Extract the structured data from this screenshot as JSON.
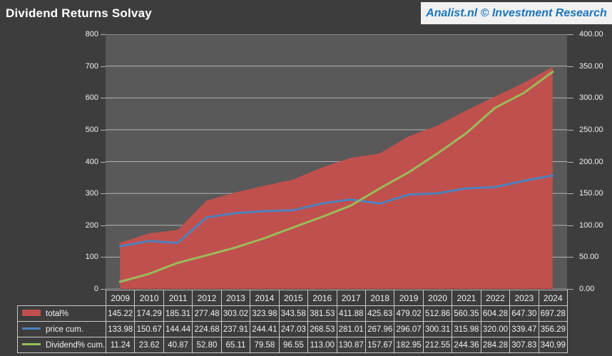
{
  "header": {
    "title": "Dividend Returns Solvay",
    "brand": "Analist.nl © Investment Research"
  },
  "colors": {
    "background": "#3d3d3d",
    "plot_background": "#595959",
    "gridline": "#b3b3b3",
    "table_border": "#c9c9c9",
    "text": "#f2f2f2",
    "title_text": "#ffffff",
    "brand_background": "#f1f1f1",
    "brand_text": "#1b75bc",
    "total_area": "#c0504d",
    "price_line": "#4f81bd",
    "dividend_line": "#9bbb59"
  },
  "chart_data": {
    "type": "area",
    "title": "Dividend Returns Solvay",
    "categories": [
      "2009",
      "2010",
      "2011",
      "2012",
      "2013",
      "2014",
      "2015",
      "2016",
      "2017",
      "2018",
      "2019",
      "2020",
      "2021",
      "2022",
      "2023",
      "2024"
    ],
    "series": [
      {
        "name": "total%",
        "type": "area",
        "axis": "left",
        "color": "#c0504d",
        "values": [
          145.22,
          174.29,
          185.31,
          277.48,
          303.02,
          323.98,
          343.58,
          381.53,
          411.88,
          425.63,
          479.02,
          512.86,
          560.35,
          604.28,
          647.3,
          697.28
        ]
      },
      {
        "name": "price cum.",
        "type": "line",
        "axis": "left",
        "color": "#4f81bd",
        "values": [
          133.98,
          150.67,
          144.44,
          224.68,
          237.91,
          244.41,
          247.03,
          268.53,
          281.01,
          267.96,
          296.07,
          300.31,
          315.98,
          320.0,
          339.47,
          356.29
        ]
      },
      {
        "name": "Dividend% cum.",
        "type": "line",
        "axis": "right",
        "color": "#9bbb59",
        "values": [
          11.24,
          23.62,
          40.87,
          52.8,
          65.11,
          79.58,
          96.55,
          113.0,
          130.87,
          157.67,
          182.95,
          212.55,
          244.36,
          284.28,
          307.83,
          340.99
        ]
      }
    ],
    "left_axis": {
      "min": 0,
      "max": 800,
      "step": 100,
      "decimals": 0
    },
    "right_axis": {
      "min": 0,
      "max": 400,
      "step": 50,
      "decimals": 2
    },
    "grid": true,
    "legend_position": "data-table-left"
  }
}
